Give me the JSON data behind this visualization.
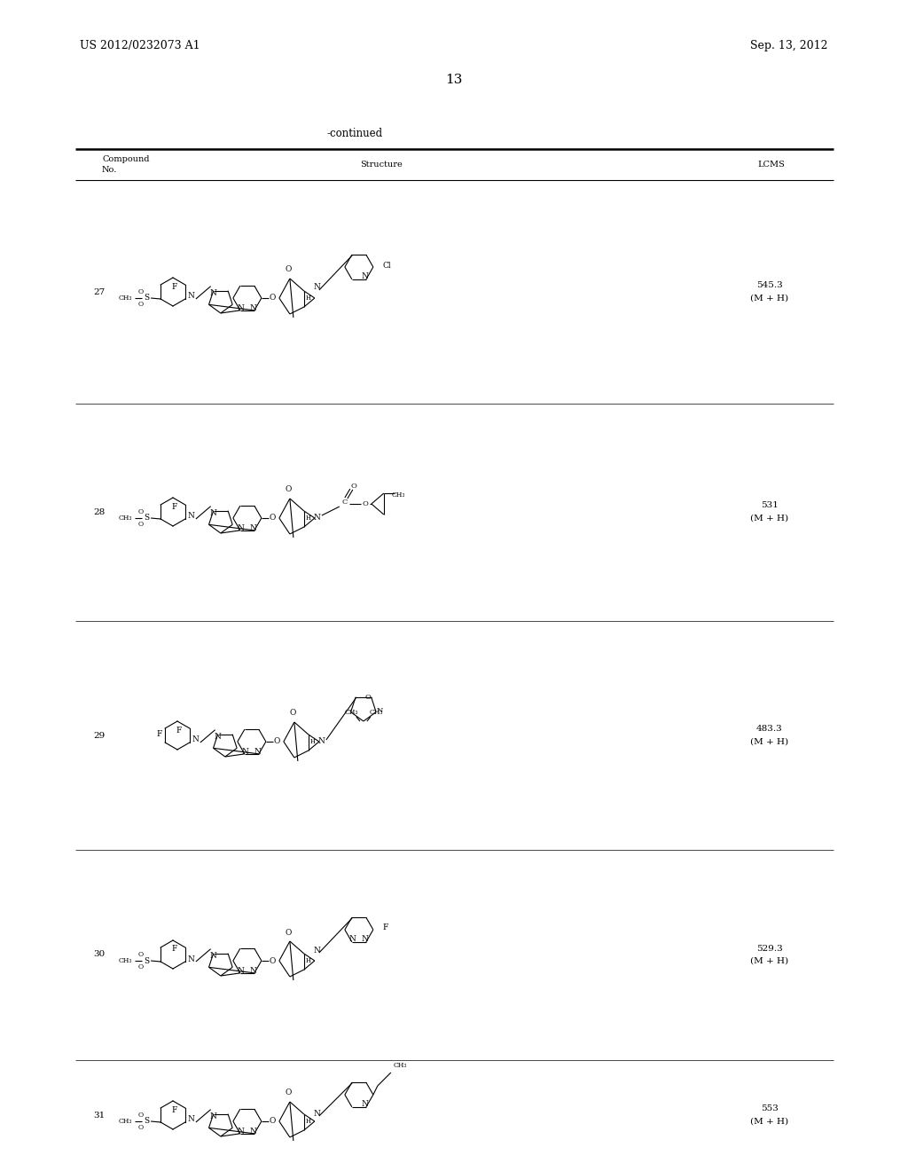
{
  "patent_number": "US 2012/0232073 A1",
  "date": "Sep. 13, 2012",
  "page_number": "13",
  "continued_label": "-continued",
  "col_header_1": "Compound",
  "col_header_2": "No.",
  "col_header_3": "Structure",
  "col_header_4": "LCMS",
  "compounds": [
    {
      "no": "27",
      "lcms1": "545.3",
      "lcms2": "(M + H)"
    },
    {
      "no": "28",
      "lcms1": "531",
      "lcms2": "(M + H)"
    },
    {
      "no": "29",
      "lcms1": "483.3",
      "lcms2": "(M + H)"
    },
    {
      "no": "30",
      "lcms1": "529.3",
      "lcms2": "(M + H)"
    },
    {
      "no": "31",
      "lcms1": "553",
      "lcms2": "(M + H)"
    }
  ],
  "bg_color": "#ffffff",
  "text_color": "#000000"
}
